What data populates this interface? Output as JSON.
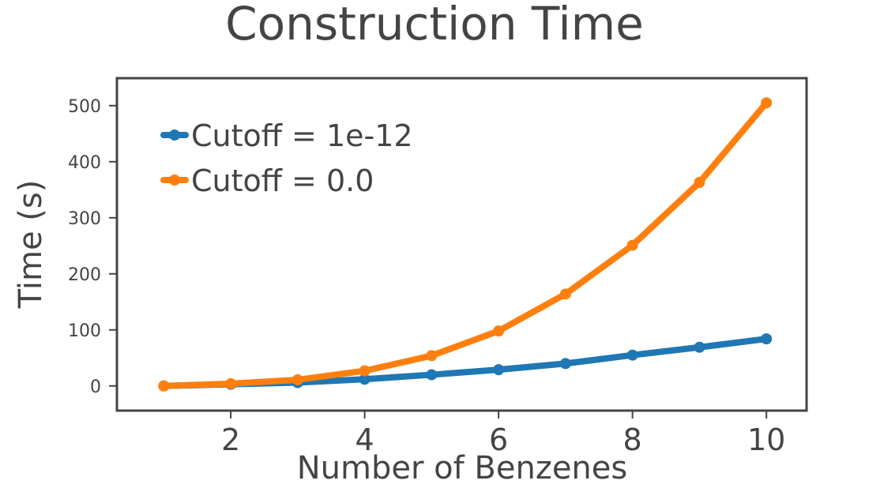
{
  "chart_data": {
    "type": "line",
    "title": "Construction Time",
    "xlabel": "Number of Benzenes",
    "ylabel": "Time (s)",
    "x": [
      1,
      2,
      3,
      4,
      5,
      6,
      7,
      8,
      9,
      10
    ],
    "xlim": [
      0.3,
      10.6
    ],
    "ylim": [
      -44,
      549
    ],
    "x_ticks": [
      2,
      4,
      6,
      8,
      10
    ],
    "y_ticks": [
      0,
      100,
      200,
      300,
      400,
      500
    ],
    "grid": false,
    "legend_position": "top-left",
    "series": [
      {
        "name": "Cutoff = 1e-12",
        "color": "#1f77b4",
        "values": [
          0,
          3,
          6,
          12,
          20,
          29,
          40,
          55,
          69,
          84
        ]
      },
      {
        "name": "Cutoff = 0.0",
        "color": "#ff7f0e",
        "values": [
          0,
          4,
          11,
          27,
          54,
          98,
          164,
          251,
          363,
          505
        ]
      }
    ]
  }
}
